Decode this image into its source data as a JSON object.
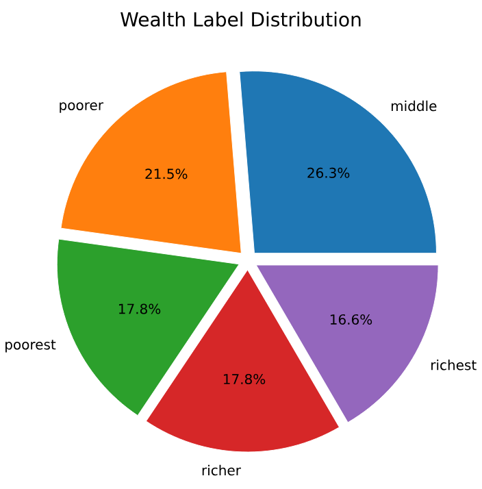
{
  "chart_data": {
    "type": "pie",
    "title": "Wealth Label Distribution",
    "categories": [
      "middle",
      "poorer",
      "poorest",
      "richer",
      "richest"
    ],
    "values": [
      26.3,
      21.5,
      17.8,
      17.8,
      16.6
    ],
    "value_labels": [
      "26.3%",
      "21.5%",
      "17.8%",
      "17.8%",
      "16.6%"
    ],
    "colors": [
      "#1f77b4",
      "#ff7f0e",
      "#2ca02c",
      "#d62728",
      "#9467bd"
    ]
  }
}
